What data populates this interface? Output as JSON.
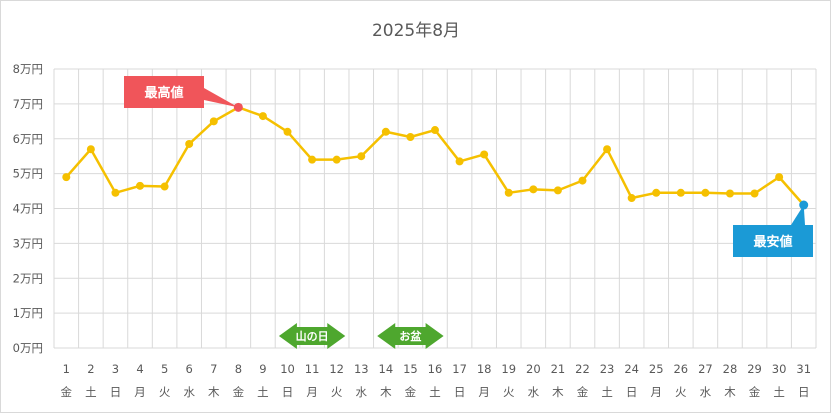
{
  "chart_data": {
    "type": "line",
    "title": "2025年8月",
    "x": [
      "1",
      "2",
      "3",
      "4",
      "5",
      "6",
      "7",
      "8",
      "9",
      "10",
      "11",
      "12",
      "13",
      "14",
      "15",
      "16",
      "17",
      "18",
      "19",
      "20",
      "21",
      "22",
      "23",
      "24",
      "25",
      "26",
      "27",
      "28",
      "29",
      "30",
      "31"
    ],
    "weekdays": [
      "金",
      "土",
      "日",
      "月",
      "火",
      "水",
      "木",
      "金",
      "土",
      "日",
      "月",
      "火",
      "水",
      "木",
      "金",
      "土",
      "日",
      "月",
      "火",
      "水",
      "木",
      "金",
      "土",
      "日",
      "月",
      "火",
      "水",
      "木",
      "金",
      "土",
      "日"
    ],
    "series": [
      {
        "values": [
          49000,
          57000,
          44500,
          46500,
          46300,
          58500,
          65000,
          69000,
          66500,
          62000,
          54000,
          54000,
          55000,
          62000,
          60500,
          62500,
          53500,
          55500,
          44500,
          45500,
          45200,
          48000,
          57000,
          43000,
          44500,
          44500,
          44500,
          44300,
          44300,
          49000,
          41000
        ],
        "color": "#f5c000"
      }
    ],
    "ylim": [
      0,
      80000
    ],
    "y_ticks": [
      0,
      10000,
      20000,
      30000,
      40000,
      50000,
      60000,
      70000,
      80000
    ],
    "y_tick_labels": [
      "0万円",
      "1万円",
      "2万円",
      "3万円",
      "4万円",
      "5万円",
      "6万円",
      "7万円",
      "8万円"
    ],
    "grid": true,
    "annotations": [
      {
        "text": "最高値",
        "x": "8",
        "color": "#f0555a"
      },
      {
        "text": "最安値",
        "x": "31",
        "color": "#1b9ad6"
      }
    ],
    "ranges": [
      {
        "text": "山の日",
        "from": "10",
        "to": "12",
        "color": "#4ea72e"
      },
      {
        "text": "お盆",
        "from": "14",
        "to": "16",
        "color": "#4ea72e"
      }
    ]
  }
}
